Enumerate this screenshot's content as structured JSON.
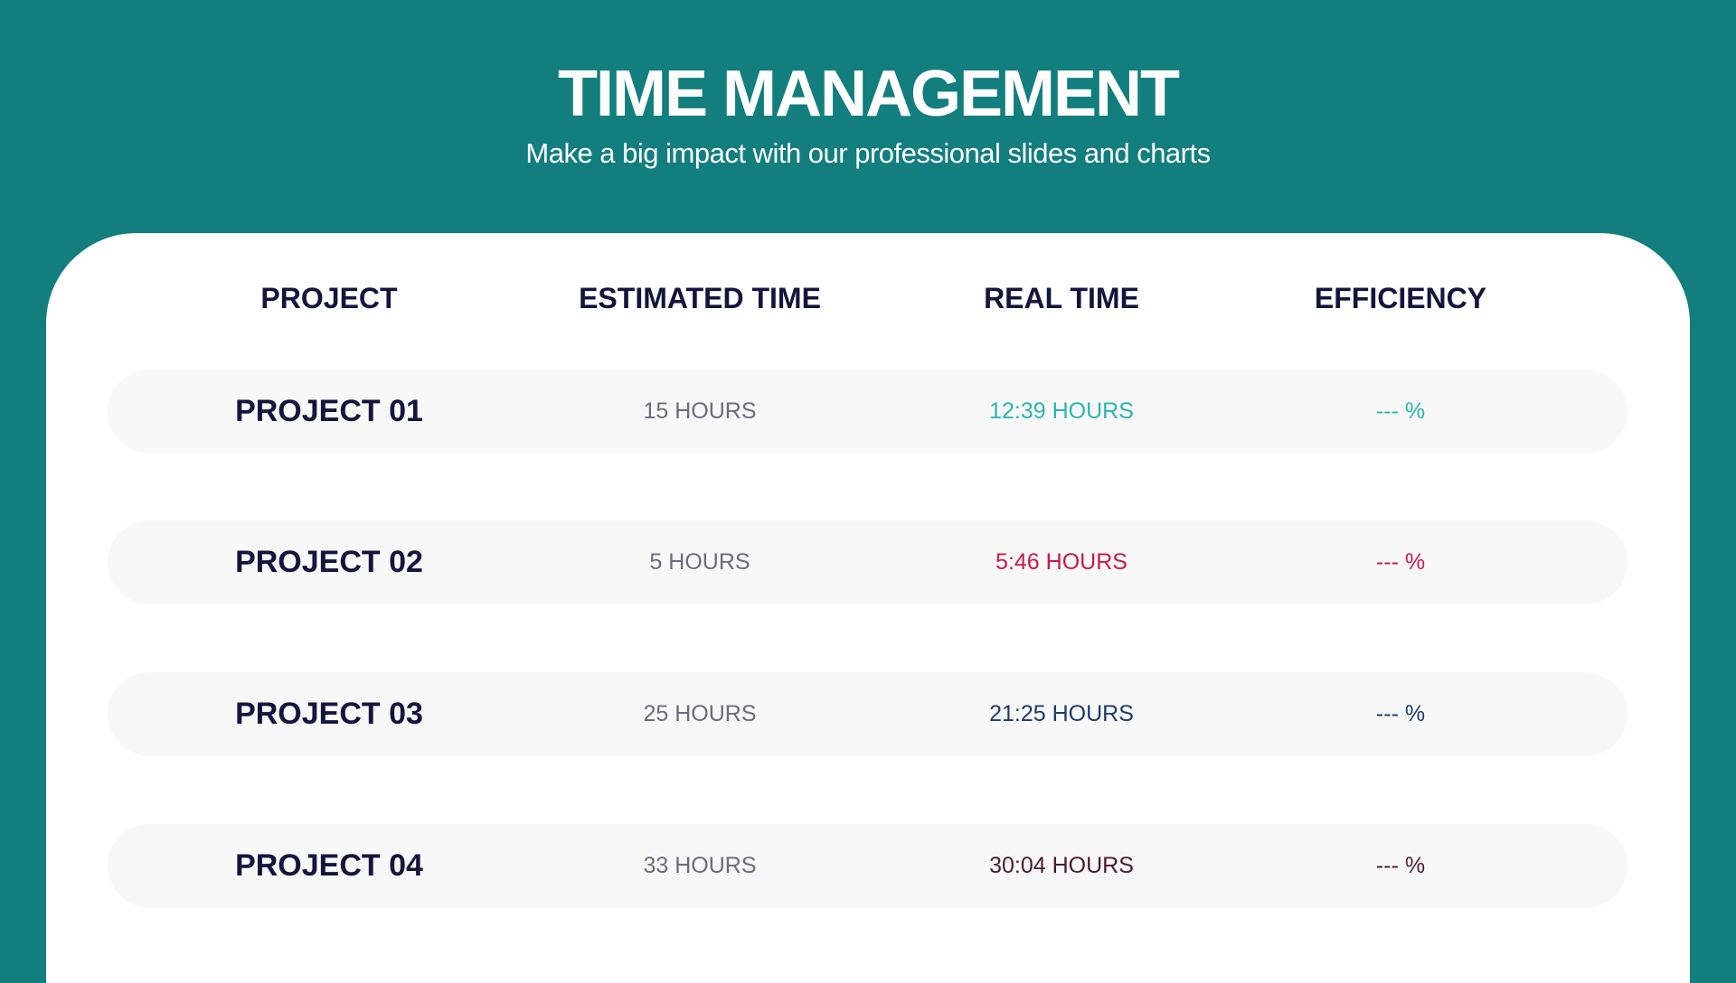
{
  "header": {
    "title": "TIME MANAGEMENT",
    "subtitle": "Make a big impact with our professional slides and charts"
  },
  "table": {
    "columns": [
      "PROJECT",
      "ESTIMATED TIME",
      "REAL TIME",
      "EFFICIENCY"
    ],
    "rows": [
      [
        "PROJECT 01",
        "15 HOURS",
        "12:39 HOURS",
        "--- %"
      ],
      [
        "PROJECT 02",
        "5 HOURS",
        "5:46 HOURS",
        "--- %"
      ],
      [
        "PROJECT 03",
        "25 HOURS",
        "21:25 HOURS",
        "--- %"
      ],
      [
        "PROJECT 04",
        "33 HOURS",
        "30:04 HOURS",
        "--- %"
      ]
    ]
  }
}
